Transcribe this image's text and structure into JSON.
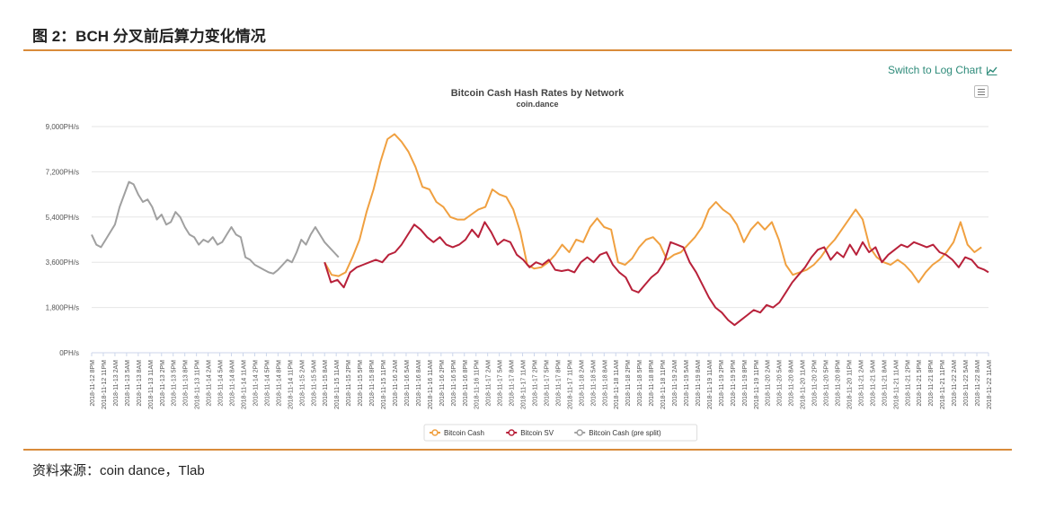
{
  "figure_title": "图 2：BCH 分叉前后算力变化情况",
  "source_note": "资料来源：coin dance，Tlab",
  "log_chart_link": "Switch to Log Chart",
  "icons": {
    "log_chart": "line-chart-icon",
    "menu": "hamburger-menu-icon"
  },
  "colors": {
    "accent_rule": "#d98b3a",
    "link": "#2e8b7a"
  },
  "chart_data": {
    "type": "line",
    "title": "Bitcoin Cash Hash Rates by Network",
    "subtitle": "coin.dance",
    "xlabel": "",
    "ylabel": "",
    "ylim": [
      0,
      9000
    ],
    "yticks": [
      "0PH/s",
      "1,800PH/s",
      "3,600PH/s",
      "5,400PH/s",
      "7,200PH/s",
      "9,000PH/s"
    ],
    "ytick_values": [
      0,
      1800,
      3600,
      5400,
      7200,
      9000
    ],
    "x_tick_labels": [
      "2018-11-12 8PM",
      "2018-11-12 11PM",
      "2018-11-13 2AM",
      "2018-11-13 5AM",
      "2018-11-13 8AM",
      "2018-11-13 11AM",
      "2018-11-13 2PM",
      "2018-11-13 5PM",
      "2018-11-13 8PM",
      "2018-11-13 11PM",
      "2018-11-14 2AM",
      "2018-11-14 5AM",
      "2018-11-14 8AM",
      "2018-11-14 11AM",
      "2018-11-14 2PM",
      "2018-11-14 5PM",
      "2018-11-14 8PM",
      "2018-11-14 11PM",
      "2018-11-15 2AM",
      "2018-11-15 5AM",
      "2018-11-15 8AM",
      "2018-11-15 11AM",
      "2018-11-15 2PM",
      "2018-11-15 5PM",
      "2018-11-15 8PM",
      "2018-11-15 11PM",
      "2018-11-16 2AM",
      "2018-11-16 5AM",
      "2018-11-16 8AM",
      "2018-11-16 11AM",
      "2018-11-16 2PM",
      "2018-11-16 5PM",
      "2018-11-16 8PM",
      "2018-11-16 11PM",
      "2018-11-17 2AM",
      "2018-11-17 5AM",
      "2018-11-17 8AM",
      "2018-11-17 11AM",
      "2018-11-17 2PM",
      "2018-11-17 5PM",
      "2018-11-17 8PM",
      "2018-11-17 11PM",
      "2018-11-18 2AM",
      "2018-11-18 5AM",
      "2018-11-18 8AM",
      "2018-11-18 11AM",
      "2018-11-18 2PM",
      "2018-11-18 5PM",
      "2018-11-18 8PM",
      "2018-11-18 11PM",
      "2018-11-19 2AM",
      "2018-11-19 5AM",
      "2018-11-19 8AM",
      "2018-11-19 11AM",
      "2018-11-19 2PM",
      "2018-11-19 5PM",
      "2018-11-19 8PM",
      "2018-11-19 11PM",
      "2018-11-20 2AM",
      "2018-11-20 5AM",
      "2018-11-20 8AM",
      "2018-11-20 11AM",
      "2018-11-20 2PM",
      "2018-11-20 5PM",
      "2018-11-20 8PM",
      "2018-11-20 11PM",
      "2018-11-21 2AM",
      "2018-11-21 5AM",
      "2018-11-21 8AM",
      "2018-11-21 11AM",
      "2018-11-21 2PM",
      "2018-11-21 5PM",
      "2018-11-21 8PM",
      "2018-11-21 11PM",
      "2018-11-22 2AM",
      "2018-11-22 5AM",
      "2018-11-22 8AM",
      "2018-11-22 11AM"
    ],
    "grid": true,
    "legend_position": "bottom-center",
    "series": [
      {
        "name": "Bitcoin Cash",
        "color": "#f0a040",
        "start_tick": 20,
        "values": [
          3600,
          3100,
          3050,
          3200,
          3800,
          4500,
          5600,
          6500,
          7600,
          8500,
          8700,
          8400,
          8000,
          7400,
          6600,
          6500,
          6000,
          5800,
          5400,
          5300,
          5300,
          5500,
          5700,
          5800,
          6500,
          6300,
          6200,
          5700,
          4800,
          3500,
          3350,
          3400,
          3600,
          3900,
          4300,
          4000,
          4500,
          4400,
          5000,
          5350,
          5000,
          4900,
          3600,
          3500,
          3750,
          4200,
          4500,
          4600,
          4300,
          3700,
          3900,
          4000,
          4300,
          4600,
          5000,
          5700,
          6000,
          5700,
          5500,
          5100,
          4400,
          4900,
          5200,
          4900,
          5200,
          4500,
          3500,
          3100,
          3200,
          3300,
          3500,
          3800,
          4200,
          4500,
          4900,
          5300,
          5700,
          5300,
          4200,
          3800,
          3600,
          3500,
          3700,
          3500,
          3200,
          2800,
          3200,
          3500,
          3700,
          4000,
          4400,
          5200,
          4300,
          4000,
          4200
        ],
        "step_ticks": 0.6
      },
      {
        "name": "Bitcoin SV",
        "color": "#b8213a",
        "start_tick": 20,
        "values": [
          3600,
          2800,
          2900,
          2600,
          3200,
          3400,
          3500,
          3600,
          3700,
          3600,
          3900,
          4000,
          4300,
          4700,
          5100,
          4900,
          4600,
          4400,
          4600,
          4300,
          4200,
          4300,
          4500,
          4900,
          4600,
          5200,
          4800,
          4300,
          4500,
          4400,
          3900,
          3700,
          3400,
          3600,
          3500,
          3700,
          3300,
          3250,
          3300,
          3200,
          3600,
          3800,
          3600,
          3900,
          4000,
          3500,
          3200,
          3000,
          2500,
          2400,
          2700,
          3000,
          3200,
          3600,
          4400,
          4300,
          4200,
          3600,
          3200,
          2700,
          2200,
          1800,
          1600,
          1300,
          1100,
          1300,
          1500,
          1700,
          1600,
          1900,
          1800,
          2000,
          2400,
          2800,
          3100,
          3400,
          3800,
          4100,
          4200,
          3700,
          4000,
          3800,
          4300,
          3900,
          4400,
          4000,
          4200,
          3600,
          3900,
          4100,
          4300,
          4200,
          4400,
          4300,
          4200,
          4300,
          4000,
          3900,
          3700,
          3400,
          3800,
          3700,
          3400,
          3300,
          3200
        ],
        "step_ticks": 0.55
      },
      {
        "name": "Bitcoin Cash (pre split)",
        "color": "#a0a0a0",
        "start_tick": 0,
        "values": [
          4700,
          4300,
          4200,
          4500,
          4800,
          5100,
          5800,
          6300,
          6800,
          6700,
          6300,
          6000,
          6100,
          5800,
          5300,
          5500,
          5100,
          5200,
          5600,
          5400,
          5000,
          4700,
          4600,
          4300,
          4500,
          4400,
          4600,
          4300,
          4400,
          4700,
          5000,
          4700,
          4600,
          3800,
          3700,
          3500,
          3400,
          3300,
          3200,
          3150,
          3300,
          3500,
          3700,
          3600,
          4000,
          4500,
          4300,
          4700,
          5000,
          4700,
          4400,
          4200,
          4000,
          3800
        ],
        "step_ticks": 0.4
      }
    ]
  }
}
